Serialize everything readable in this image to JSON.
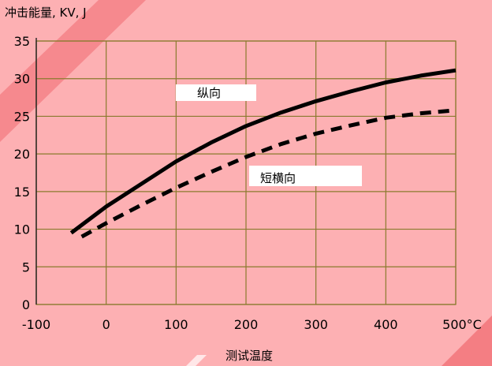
{
  "chart_data": {
    "type": "line",
    "ylabel": "冲击能量, KV, J",
    "xlabel": "测试温度",
    "x_unit_suffix": "°C",
    "xlim": [
      -100,
      500
    ],
    "ylim": [
      0,
      35
    ],
    "xticks": [
      -100,
      0,
      100,
      200,
      300,
      400,
      500
    ],
    "yticks": [
      0,
      5,
      10,
      15,
      20,
      25,
      30,
      35
    ],
    "grid": true,
    "series": [
      {
        "name": "纵向",
        "style": "solid",
        "color": "#000000",
        "points": [
          [
            -50,
            9.5
          ],
          [
            0,
            13.0
          ],
          [
            50,
            16.0
          ],
          [
            100,
            19.0
          ],
          [
            150,
            21.5
          ],
          [
            200,
            23.7
          ],
          [
            250,
            25.5
          ],
          [
            300,
            27.0
          ],
          [
            350,
            28.3
          ],
          [
            400,
            29.5
          ],
          [
            450,
            30.4
          ],
          [
            500,
            31.1
          ]
        ]
      },
      {
        "name": "短横向",
        "style": "dashed",
        "color": "#000000",
        "points": [
          [
            -35,
            9.0
          ],
          [
            0,
            10.8
          ],
          [
            50,
            13.2
          ],
          [
            100,
            15.5
          ],
          [
            150,
            17.6
          ],
          [
            200,
            19.6
          ],
          [
            250,
            21.3
          ],
          [
            300,
            22.7
          ],
          [
            350,
            23.8
          ],
          [
            400,
            24.8
          ],
          [
            450,
            25.4
          ],
          [
            500,
            25.8
          ]
        ]
      }
    ],
    "annotations": [
      {
        "text": "纵向",
        "series": "纵向"
      },
      {
        "text": "短横向",
        "series": "短横向"
      }
    ],
    "colors": {
      "background": "#fdb0b3",
      "grid": "#8a7a2e",
      "stripe": "#f06a6f"
    }
  }
}
